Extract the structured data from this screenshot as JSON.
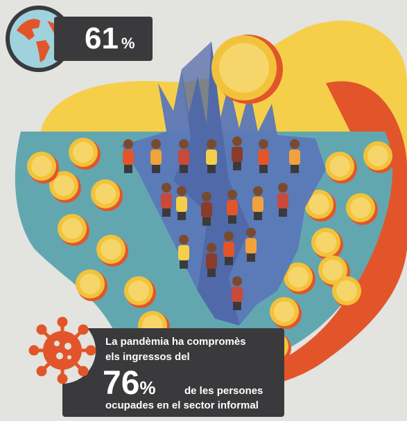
{
  "top_stat": {
    "value": "61",
    "unit": "%"
  },
  "bottom_stat": {
    "line1": "La pandèmia ha compromès",
    "line2": "els ingressos del",
    "value": "76",
    "unit": "%",
    "line3": "de les persones",
    "line4": "ocupades en el sector informal"
  },
  "colors": {
    "background": "#e3e3df",
    "yellow": "#f6cf4a",
    "teal": "#62a7b0",
    "orange_red": "#e2552a",
    "blue": "#5b77b8",
    "coin": "#f2c33a",
    "dark_box": "#3a3a3c"
  },
  "icons": [
    "globe-icon",
    "virus-icon",
    "coin-icon",
    "person-icon"
  ]
}
